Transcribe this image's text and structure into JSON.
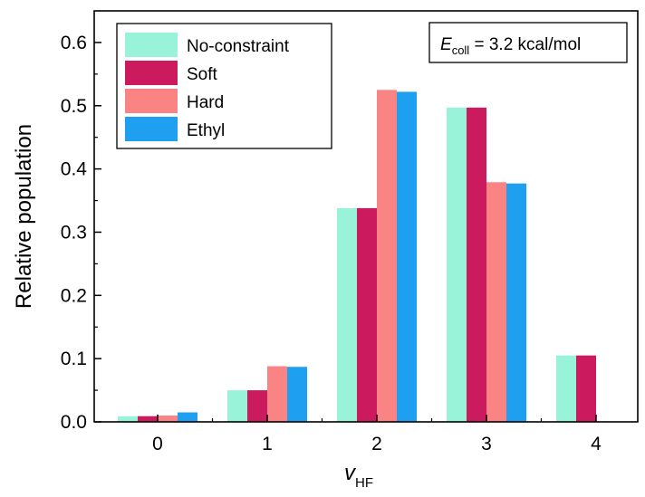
{
  "chart_data": {
    "type": "bar",
    "categories": [
      "0",
      "1",
      "2",
      "3",
      "4"
    ],
    "series": [
      {
        "name": "No-constraint",
        "color": "#99f3d8",
        "values": [
          0.009,
          0.05,
          0.338,
          0.497,
          0.105
        ]
      },
      {
        "name": "Soft",
        "color": "#cc1a5e",
        "values": [
          0.009,
          0.05,
          0.338,
          0.497,
          0.105
        ]
      },
      {
        "name": "Hard",
        "color": "#fa8484",
        "values": [
          0.01,
          0.088,
          0.525,
          0.379,
          0.0
        ]
      },
      {
        "name": "Ethyl",
        "color": "#1f9ff0",
        "values": [
          0.015,
          0.087,
          0.522,
          0.377,
          0.0
        ]
      }
    ],
    "xlabel": "v",
    "xlabel_sub": "HF",
    "ylabel": "Relative population",
    "ylim": [
      0,
      0.65
    ],
    "yticks": [
      "0.0",
      "0.1",
      "0.2",
      "0.3",
      "0.4",
      "0.5",
      "0.6"
    ],
    "grid": false,
    "legend_position": "top-left",
    "annotation": {
      "symbol": "E",
      "subscript": "coll",
      "text": " = 3.2 kcal/mol",
      "position": "top-right"
    }
  }
}
